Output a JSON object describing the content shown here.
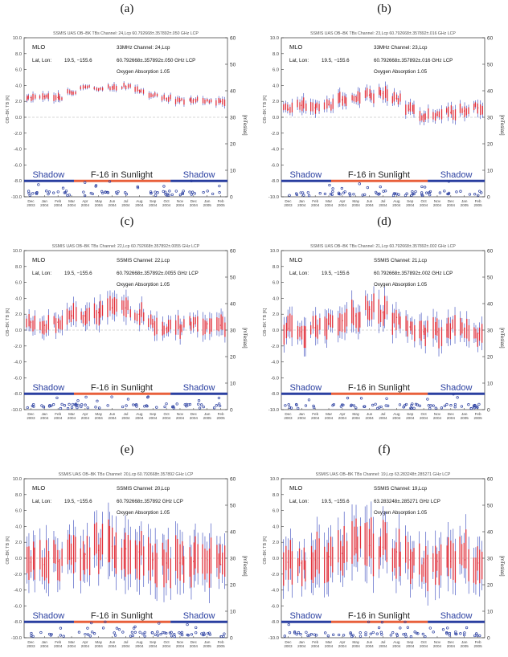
{
  "figure": {
    "colors": {
      "measurement": "#e0303c",
      "error_bar": "#3344bb",
      "sunlight": "#e8603c",
      "shadow": "#2a3fa0",
      "grid": "#b0b0b0"
    },
    "y_ticks": [
      "10.0",
      "8.0",
      "6.0",
      "4.0",
      "2.0",
      "0.0",
      "-2.0",
      "-4.0",
      "-6.0",
      "-8.0",
      "-10.0"
    ],
    "y2_ticks": [
      "60",
      "50",
      "40",
      "30",
      "20",
      "10",
      "0"
    ],
    "x_months": [
      [
        "Dec",
        "2003"
      ],
      [
        "Jan",
        "2004"
      ],
      [
        "Feb",
        "2004"
      ],
      [
        "Mar",
        "2004"
      ],
      [
        "Apr",
        "2004"
      ],
      [
        "May",
        "2004"
      ],
      [
        "Jun",
        "2004"
      ],
      [
        "Jul",
        "2004"
      ],
      [
        "Aug",
        "2004"
      ],
      [
        "Sep",
        "2004"
      ],
      [
        "Oct",
        "2004"
      ],
      [
        "Nov",
        "2004"
      ],
      [
        "Dec",
        "2004"
      ],
      [
        "Jan",
        "2005"
      ],
      [
        "Feb",
        "2005"
      ]
    ],
    "ylabel": "OB–BK TB [K]",
    "y2label": "[mTeslas]",
    "station": "MLO",
    "latlon_label": "Lat, Lon:",
    "latlon_value": "19.5, −155.6",
    "oxygen": "Oxygen Absorption 1.05",
    "shadow_label": "Shadow",
    "sun_label": "F-16 in Sunlight"
  },
  "chart_data": [
    {
      "type": "scatter",
      "panel": "(a)",
      "title": "SSMIS UAS OB–BK TBs Channel: 24,Lcp 60.792668±.357892±.050 GHz LCP",
      "channel": "33MHz Channel: 24,Lcp",
      "freq": "60.792668±.357892±.050 GHz LCP",
      "ylim": [
        -10,
        10
      ],
      "y2lim": [
        0,
        60
      ],
      "x": [
        "Dec 2003",
        "Jan 2004",
        "Feb 2004",
        "Mar 2004",
        "Apr 2004",
        "May 2004",
        "Jun 2004",
        "Jul 2004",
        "Aug 2004",
        "Sep 2004",
        "Oct 2004",
        "Nov 2004",
        "Dec 2004",
        "Jan 2005",
        "Feb 2005"
      ],
      "values": [
        2.5,
        2.6,
        2.5,
        3.2,
        3.8,
        3.6,
        3.8,
        3.9,
        3.4,
        2.8,
        2.4,
        2.1,
        2.2,
        2.1,
        2.0
      ],
      "spread": [
        0.6,
        0.6,
        0.6,
        0.5,
        0.4,
        0.4,
        0.5,
        0.5,
        0.5,
        0.5,
        0.5,
        0.5,
        0.5,
        0.5,
        0.6
      ]
    },
    {
      "type": "scatter",
      "panel": "(b)",
      "title": "SSMIS UAS OB–BK TBs Channel: 23,Lcp 60.792668±.357892±.016 GHz LCP",
      "channel": "33MHz Channel: 23,Lcp",
      "freq": "60.792668±.357892±.016 GHz LCP",
      "ylim": [
        -10,
        10
      ],
      "y2lim": [
        0,
        60
      ],
      "x": [
        "Dec 2003",
        "Jan 2004",
        "Feb 2004",
        "Mar 2004",
        "Apr 2004",
        "May 2004",
        "Jun 2004",
        "Jul 2004",
        "Aug 2004",
        "Sep 2004",
        "Oct 2004",
        "Nov 2004",
        "Dec 2004",
        "Jan 2005",
        "Feb 2005"
      ],
      "values": [
        1.0,
        1.5,
        1.2,
        1.6,
        2.2,
        2.6,
        2.8,
        3.0,
        2.4,
        1.0,
        0.2,
        0.3,
        0.6,
        0.8,
        1.2
      ],
      "spread": [
        1.0,
        1.0,
        1.0,
        1.0,
        1.0,
        1.0,
        1.1,
        1.1,
        1.0,
        1.0,
        1.0,
        1.0,
        1.0,
        1.0,
        1.0
      ]
    },
    {
      "type": "scatter",
      "panel": "(c)",
      "title": "SSMIS UAS OB–BK TBs Channel: 22,Lcp 60.792668±.357892±.0055 GHz LCP",
      "channel": "SSMIS Channel: 22,Lcp",
      "freq": "60.792668±.357892±.0055 GHz LCP",
      "ylim": [
        -10,
        10
      ],
      "y2lim": [
        0,
        60
      ],
      "x": [
        "Dec 2003",
        "Jan 2004",
        "Feb 2004",
        "Mar 2004",
        "Apr 2004",
        "May 2004",
        "Jun 2004",
        "Jul 2004",
        "Aug 2004",
        "Sep 2004",
        "Oct 2004",
        "Nov 2004",
        "Dec 2004",
        "Jan 2005",
        "Feb 2005"
      ],
      "values": [
        1.0,
        0.6,
        1.0,
        1.8,
        1.8,
        2.2,
        2.8,
        2.8,
        2.0,
        0.8,
        0.2,
        0.4,
        0.8,
        0.8,
        0.6
      ],
      "spread": [
        1.5,
        1.5,
        1.5,
        1.6,
        1.6,
        1.6,
        1.7,
        1.8,
        1.6,
        1.5,
        1.5,
        1.5,
        1.5,
        1.5,
        1.5
      ]
    },
    {
      "type": "scatter",
      "panel": "(d)",
      "title": "SSMIS UAS OB–BK TBs Channel: 21,Lcp 60.792668±.357892±.002 GHz LCP",
      "channel": "SSMIS Channel: 21,Lcp",
      "freq": "60.792668±.357892±.002 GHz LCP",
      "ylim": [
        -10,
        10
      ],
      "y2lim": [
        0,
        60
      ],
      "x": [
        "Dec 2003",
        "Jan 2004",
        "Feb 2004",
        "Mar 2004",
        "Apr 2004",
        "May 2004",
        "Jun 2004",
        "Jul 2004",
        "Aug 2004",
        "Sep 2004",
        "Oct 2004",
        "Nov 2004",
        "Dec 2004",
        "Jan 2005",
        "Feb 2005"
      ],
      "values": [
        0.2,
        -0.2,
        0.3,
        0.8,
        1.2,
        1.8,
        2.6,
        2.2,
        1.6,
        0.4,
        -0.2,
        -0.2,
        0.2,
        0.2,
        -0.4
      ],
      "spread": [
        2.0,
        2.0,
        2.0,
        2.0,
        2.1,
        2.2,
        2.3,
        2.2,
        2.1,
        2.0,
        2.0,
        2.0,
        2.0,
        2.0,
        2.1
      ]
    },
    {
      "type": "scatter",
      "panel": "(e)",
      "title": "SSMIS UAS OB–BK TBs Channel: 20,Lcp 60.792668±.357892 GHz LCP",
      "channel": "SSMIS Channel: 20,Lcp",
      "freq": "60.792668±.357892 GHz LCP",
      "ylim": [
        -10,
        10
      ],
      "y2lim": [
        0,
        60
      ],
      "x": [
        "Dec 2003",
        "Jan 2004",
        "Feb 2004",
        "Mar 2004",
        "Apr 2004",
        "May 2004",
        "Jun 2004",
        "Jul 2004",
        "Aug 2004",
        "Sep 2004",
        "Oct 2004",
        "Nov 2004",
        "Dec 2004",
        "Jan 2005",
        "Feb 2005"
      ],
      "values": [
        -0.5,
        -0.8,
        -0.4,
        0.0,
        0.5,
        1.0,
        1.5,
        1.2,
        0.8,
        -0.2,
        -0.6,
        -0.6,
        -0.4,
        -0.2,
        -0.8
      ],
      "spread": [
        3.5,
        3.5,
        3.5,
        3.6,
        3.8,
        4.0,
        4.2,
        4.0,
        3.8,
        3.6,
        3.6,
        3.6,
        3.6,
        3.6,
        3.8
      ]
    },
    {
      "type": "scatter",
      "panel": "(f)",
      "title": "SSMIS UAS OB–BK TBs Channel: 19,Lcp 63.283248±.285271 GHz LCP",
      "channel": "SSMIS Channel: 19,Lcp",
      "freq": "63.283248±.285271 GHz LCP",
      "ylim": [
        -10,
        10
      ],
      "y2lim": [
        0,
        60
      ],
      "x": [
        "Dec 2003",
        "Jan 2004",
        "Feb 2004",
        "Mar 2004",
        "Apr 2004",
        "May 2004",
        "Jun 2004",
        "Jul 2004",
        "Aug 2004",
        "Sep 2004",
        "Oct 2004",
        "Nov 2004",
        "Dec 2004",
        "Jan 2005",
        "Feb 2005"
      ],
      "values": [
        -0.5,
        -0.6,
        -0.2,
        0.2,
        0.6,
        1.2,
        1.6,
        1.4,
        0.8,
        -0.2,
        -0.6,
        -0.4,
        -0.4,
        -0.2,
        -0.6
      ],
      "spread": [
        3.5,
        3.5,
        3.5,
        3.6,
        3.8,
        4.0,
        4.2,
        4.0,
        3.8,
        3.6,
        3.6,
        3.6,
        3.6,
        3.6,
        3.8
      ]
    }
  ]
}
